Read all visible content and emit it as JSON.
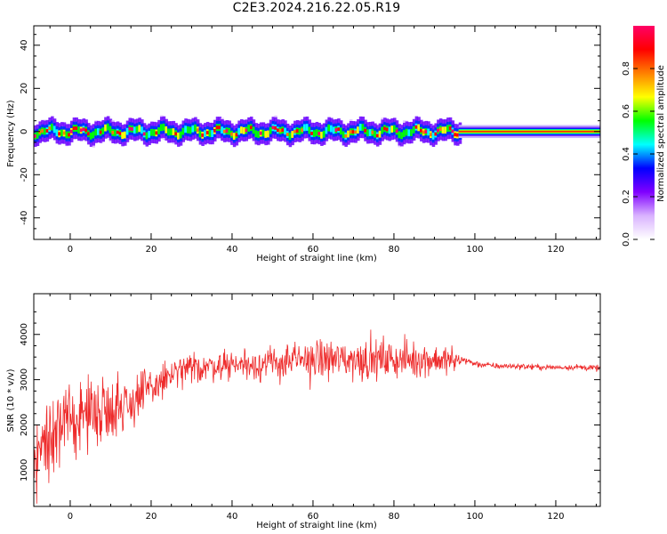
{
  "title": "C2E3.2024.216.22.05.R19",
  "colors": {
    "snr_line": "#ee2b2b",
    "axis": "#000000"
  },
  "chart_data": [
    {
      "type": "heatmap",
      "name": "spectrogram",
      "xlabel": "Height of straight line (km)",
      "ylabel": "Frequency (Hz)",
      "xlim": [
        -9,
        131
      ],
      "ylim": [
        -50,
        49
      ],
      "xticks": [
        0,
        20,
        40,
        60,
        80,
        100,
        120
      ],
      "yticks": [
        40,
        20,
        0,
        -20,
        -40
      ],
      "grid": false,
      "track": {
        "description_visible": "narrow band near 0 Hz across all heights",
        "noisy_range_km": [
          -9,
          96
        ],
        "steady_range_km": [
          96,
          131
        ],
        "center_hz": 0,
        "core_halfwidth_hz": 2,
        "spread_halfwidth_hz": 8
      },
      "colorbar": {
        "label": "Normalized spectral amplitude",
        "range": [
          0,
          1
        ],
        "ticks": [
          0.0,
          0.2,
          0.4,
          0.6,
          0.8
        ],
        "colors": [
          "#ffffff",
          "#d9b3ff",
          "#8000ff",
          "#0000ff",
          "#00ffff",
          "#00ff00",
          "#ffff00",
          "#ff8000",
          "#ff0000",
          "#ff0066"
        ]
      }
    },
    {
      "type": "line",
      "name": "snr",
      "xlabel": "Height of straight line (km)",
      "ylabel": "SNR (10 * v/v)",
      "xlim": [
        -9,
        131
      ],
      "ylim": [
        200,
        4900
      ],
      "xticks": [
        0,
        20,
        40,
        60,
        80,
        100,
        120
      ],
      "yticks": [
        1000,
        2000,
        3000,
        4000
      ],
      "grid": false,
      "series": [
        {
          "x": [
            -9,
            -5,
            0,
            5,
            10,
            15,
            20,
            25,
            30,
            35,
            40,
            45,
            50,
            55,
            60,
            65,
            70,
            75,
            80,
            85,
            90,
            95,
            97,
            100,
            105,
            110,
            115,
            120,
            125,
            131
          ],
          "mean": [
            1400,
            1700,
            2100,
            2300,
            2400,
            2500,
            2800,
            3100,
            3250,
            3300,
            3350,
            3350,
            3350,
            3400,
            3450,
            3450,
            3450,
            3450,
            3450,
            3450,
            3450,
            3400,
            3450,
            3350,
            3300,
            3300,
            3280,
            3270,
            3280,
            3250
          ],
          "spread": [
            1200,
            1100,
            900,
            900,
            900,
            800,
            600,
            450,
            420,
            380,
            400,
            450,
            450,
            500,
            550,
            550,
            550,
            550,
            500,
            480,
            450,
            400,
            100,
            90,
            80,
            80,
            80,
            80,
            80,
            80
          ]
        }
      ]
    }
  ]
}
